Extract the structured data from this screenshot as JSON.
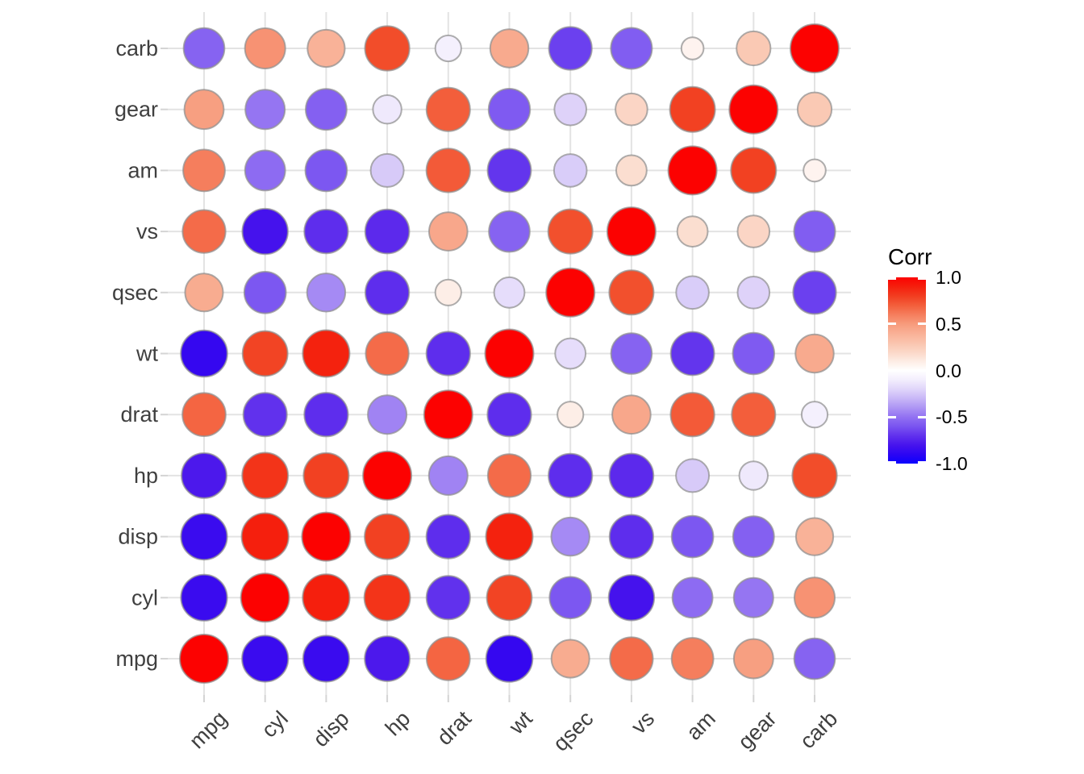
{
  "chart_data": {
    "type": "heatmap",
    "subtype": "correlation-bubble-matrix",
    "title": "",
    "x_tick_labels": [
      "mpg",
      "cyl",
      "disp",
      "hp",
      "drat",
      "wt",
      "qsec",
      "vs",
      "am",
      "gear",
      "carb"
    ],
    "y_tick_labels_top_to_bottom": [
      "carb",
      "gear",
      "am",
      "vs",
      "qsec",
      "wt",
      "drat",
      "hp",
      "disp",
      "cyl",
      "mpg"
    ],
    "matrix": {
      "rows_bottom_to_top": [
        "mpg",
        "cyl",
        "disp",
        "hp",
        "drat",
        "wt",
        "qsec",
        "vs",
        "am",
        "gear",
        "carb"
      ],
      "columns_left_to_right": [
        "mpg",
        "cyl",
        "disp",
        "hp",
        "drat",
        "wt",
        "qsec",
        "vs",
        "am",
        "gear",
        "carb"
      ],
      "values": [
        [
          1.0,
          -0.85,
          -0.85,
          -0.78,
          0.68,
          -0.87,
          0.42,
          0.66,
          0.6,
          0.48,
          -0.55
        ],
        [
          -0.85,
          1.0,
          0.9,
          0.83,
          -0.7,
          0.78,
          -0.59,
          -0.81,
          -0.52,
          -0.49,
          0.53
        ],
        [
          -0.85,
          0.9,
          1.0,
          0.79,
          -0.71,
          0.89,
          -0.43,
          -0.71,
          -0.59,
          -0.56,
          0.39
        ],
        [
          -0.78,
          0.83,
          0.79,
          1.0,
          -0.45,
          0.66,
          -0.71,
          -0.72,
          -0.24,
          -0.13,
          0.75
        ],
        [
          0.68,
          -0.7,
          -0.71,
          -0.45,
          1.0,
          -0.71,
          0.09,
          0.44,
          0.71,
          0.7,
          -0.09
        ],
        [
          -0.87,
          0.78,
          0.89,
          0.66,
          -0.71,
          1.0,
          -0.17,
          -0.55,
          -0.69,
          -0.58,
          0.43
        ],
        [
          0.42,
          -0.59,
          -0.43,
          -0.71,
          0.09,
          -0.17,
          1.0,
          0.74,
          -0.23,
          -0.21,
          -0.66
        ],
        [
          0.66,
          -0.81,
          -0.71,
          -0.72,
          0.44,
          -0.55,
          0.74,
          1.0,
          0.17,
          0.21,
          -0.57
        ],
        [
          0.6,
          -0.52,
          -0.59,
          -0.24,
          0.71,
          -0.69,
          -0.23,
          0.17,
          1.0,
          0.79,
          0.06
        ],
        [
          0.48,
          -0.49,
          -0.56,
          -0.13,
          0.7,
          -0.58,
          -0.21,
          0.21,
          0.79,
          1.0,
          0.27
        ],
        [
          -0.55,
          0.53,
          0.39,
          0.75,
          -0.09,
          0.43,
          -0.66,
          -0.57,
          0.06,
          0.27,
          1.0
        ]
      ]
    },
    "legend": {
      "title": "Corr",
      "ticks": [
        {
          "label": "1.0",
          "value": 1.0
        },
        {
          "label": "0.5",
          "value": 0.5
        },
        {
          "label": "0.0",
          "value": 0.0
        },
        {
          "label": "-0.5",
          "value": -0.5
        },
        {
          "label": "-1.0",
          "value": -1.0
        }
      ],
      "range": [
        -1.0,
        1.0
      ],
      "position": "right"
    },
    "colors": {
      "high": "#FC0201",
      "mid": "#FFFFFF",
      "low": "#0B00FF",
      "grid": "#E3E3E3",
      "axis_tick": "#D4D4D4",
      "circle_stroke": "#8F8F8F",
      "axis_text": "#3F3F3F",
      "legend_text": "#000000",
      "background": "#FFFFFF"
    },
    "layout_hints": {
      "grid": true,
      "x_label_angle_deg": 45,
      "size_encodes": "abs(correlation)",
      "color_encodes": "correlation"
    }
  }
}
